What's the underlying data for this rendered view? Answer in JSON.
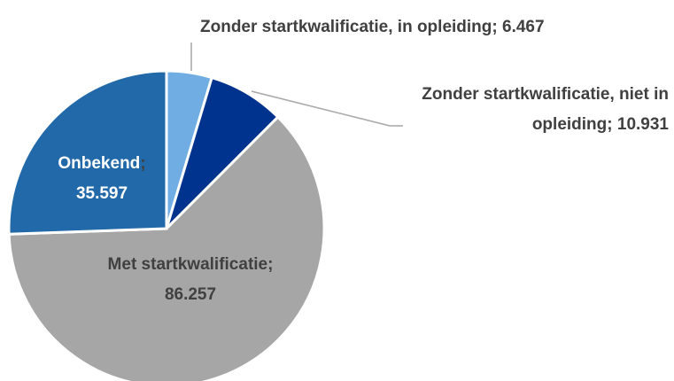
{
  "chart_data": {
    "type": "pie",
    "categories": [
      "Zonder startkwalificatie, in opleiding",
      "Zonder startkwalificatie, niet in opleiding",
      "Met startkwalificatie",
      "Onbekend"
    ],
    "values": [
      6467,
      10931,
      86257,
      35597
    ],
    "value_labels": [
      "6.467",
      "10.931",
      "86.257",
      "35.597"
    ],
    "label_separator": "; ",
    "colors": [
      "#6fade3",
      "#00338d",
      "#a6a6a6",
      "#2169a8"
    ]
  }
}
